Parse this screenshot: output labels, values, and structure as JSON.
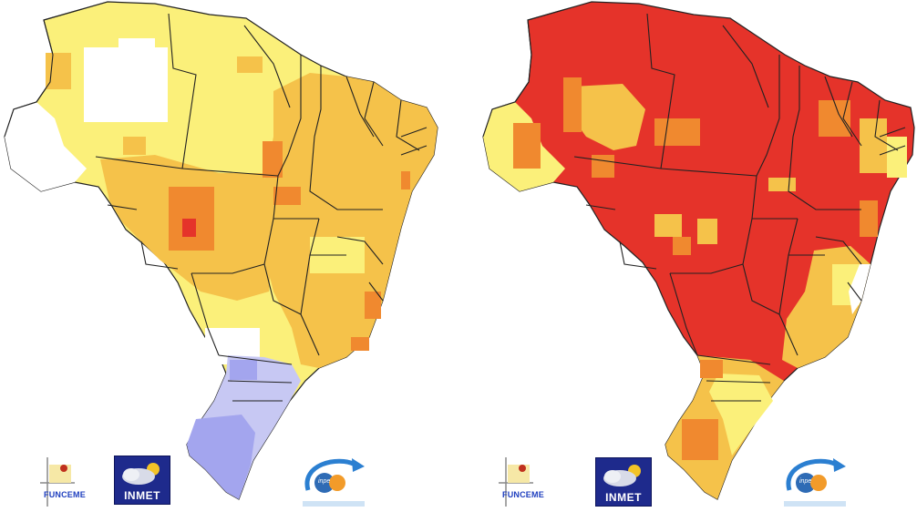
{
  "logos": {
    "funceme": "FUNCEME",
    "inmet": "INMET",
    "inpe": "inpe"
  },
  "colors": {
    "white": "#ffffff",
    "light_yellow": "#fbf07a",
    "yellow": "#f8e44a",
    "gold": "#f5c24a",
    "orange": "#f0892f",
    "red": "#e5332a",
    "lavender": "#c7c8f3",
    "periwinkle": "#a3a5ee",
    "border": "#222222"
  },
  "maps": [
    {
      "id": "left",
      "dominant": "gold",
      "south": "periwinkle"
    },
    {
      "id": "right",
      "dominant": "red",
      "south": "light_yellow"
    }
  ]
}
